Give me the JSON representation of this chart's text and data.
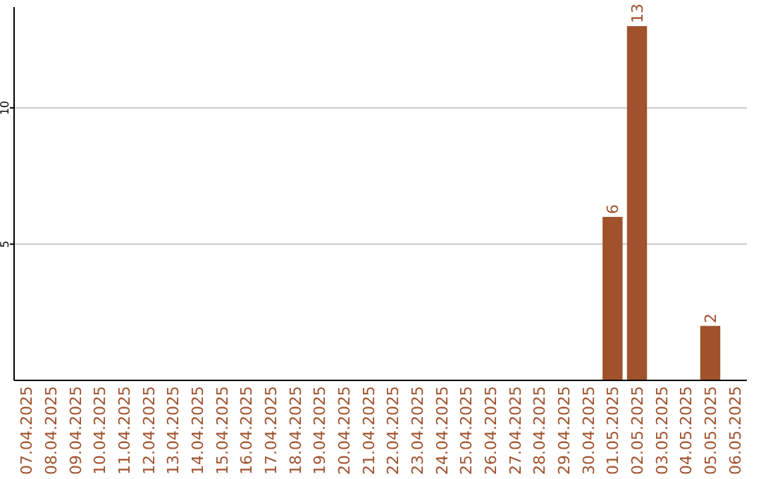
{
  "chart_data": {
    "type": "bar",
    "categories": [
      "07.04.2025",
      "08.04.2025",
      "09.04.2025",
      "10.04.2025",
      "11.04.2025",
      "12.04.2025",
      "13.04.2025",
      "14.04.2025",
      "15.04.2025",
      "16.04.2025",
      "17.04.2025",
      "18.04.2025",
      "19.04.2025",
      "20.04.2025",
      "21.04.2025",
      "22.04.2025",
      "23.04.2025",
      "24.04.2025",
      "25.04.2025",
      "26.04.2025",
      "27.04.2025",
      "28.04.2025",
      "29.04.2025",
      "30.04.2025",
      "01.05.2025",
      "02.05.2025",
      "03.05.2025",
      "04.05.2025",
      "05.05.2025",
      "06.05.2025"
    ],
    "values": [
      0,
      0,
      0,
      0,
      0,
      0,
      0,
      0,
      0,
      0,
      0,
      0,
      0,
      0,
      0,
      0,
      0,
      0,
      0,
      0,
      0,
      0,
      0,
      0,
      6,
      13,
      0,
      0,
      2,
      0
    ],
    "value_labels": [
      null,
      null,
      null,
      null,
      null,
      null,
      null,
      null,
      null,
      null,
      null,
      null,
      null,
      null,
      null,
      null,
      null,
      null,
      null,
      null,
      null,
      null,
      null,
      null,
      "6",
      "13",
      null,
      null,
      "2",
      null
    ],
    "color": "#a0522d",
    "ylim": [
      0,
      13.7
    ],
    "yticks": [
      5,
      10
    ],
    "grid": "y"
  }
}
